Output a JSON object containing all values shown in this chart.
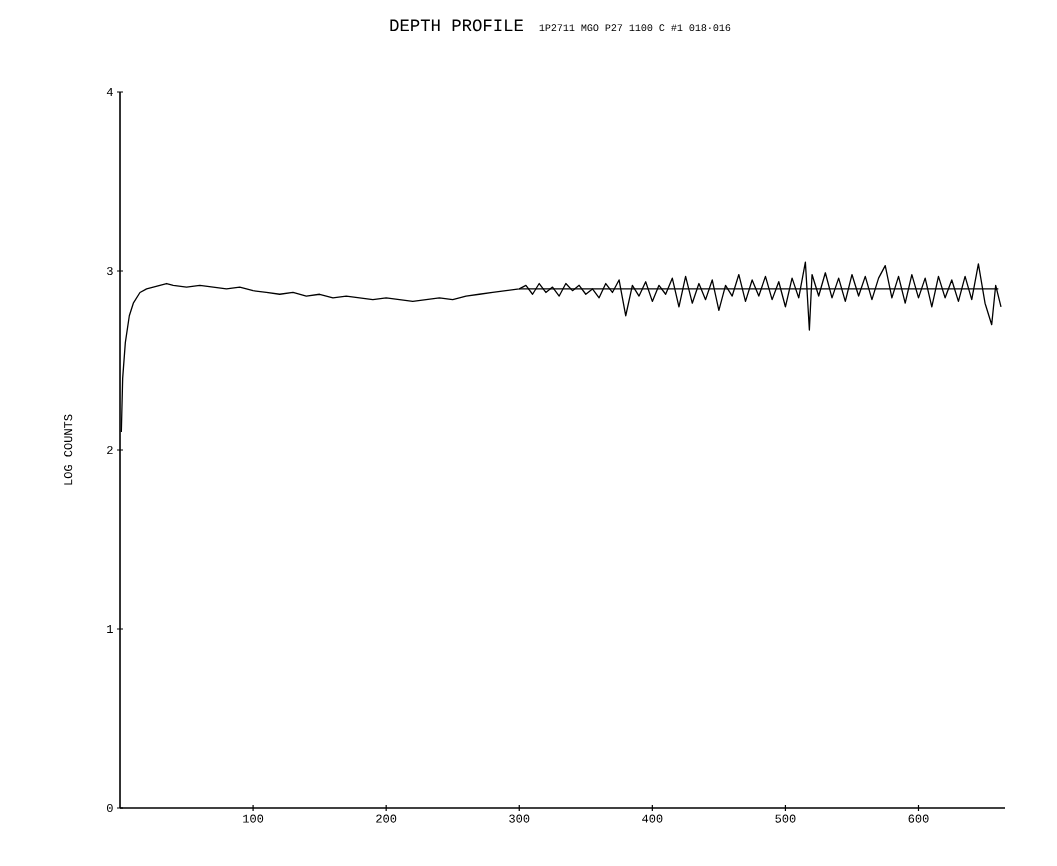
{
  "chart_data": {
    "type": "line",
    "title": "DEPTH PROFILE",
    "subtitle": "1P2711 MGO P27 1100 C #1 018·016",
    "ylabel": "LOG COUNTS",
    "xlim": [
      0,
      665
    ],
    "ylim": [
      0,
      4
    ],
    "xticks": [
      100,
      200,
      300,
      400,
      500,
      600
    ],
    "yticks": [
      0,
      1,
      2,
      3,
      4
    ],
    "grid": false,
    "marker": "none",
    "line_style": "solid",
    "series": [
      {
        "color": "#000000",
        "x": [
          1,
          2,
          4,
          7,
          10,
          15,
          20,
          25,
          30,
          35,
          40,
          50,
          60,
          70,
          80,
          90,
          100,
          110,
          120,
          130,
          140,
          150,
          160,
          170,
          180,
          190,
          200,
          210,
          220,
          230,
          240,
          250,
          260,
          270,
          280,
          290,
          300,
          305,
          310,
          315,
          320,
          325,
          330,
          335,
          340,
          345,
          350,
          355,
          360,
          365,
          370,
          375,
          380,
          385,
          390,
          395,
          400,
          405,
          410,
          415,
          420,
          425,
          430,
          435,
          440,
          445,
          450,
          455,
          460,
          465,
          470,
          475,
          480,
          485,
          490,
          495,
          500,
          505,
          510,
          515,
          518,
          520,
          525,
          530,
          535,
          540,
          545,
          550,
          555,
          560,
          565,
          570,
          575,
          580,
          585,
          590,
          595,
          600,
          605,
          610,
          615,
          620,
          625,
          630,
          635,
          640,
          645,
          650,
          655,
          658,
          662
        ],
        "values": [
          2.1,
          2.4,
          2.6,
          2.75,
          2.82,
          2.88,
          2.9,
          2.91,
          2.92,
          2.93,
          2.92,
          2.91,
          2.92,
          2.91,
          2.9,
          2.91,
          2.89,
          2.88,
          2.87,
          2.88,
          2.86,
          2.87,
          2.85,
          2.86,
          2.85,
          2.84,
          2.85,
          2.84,
          2.83,
          2.84,
          2.85,
          2.84,
          2.86,
          2.87,
          2.88,
          2.89,
          2.9,
          2.92,
          2.87,
          2.93,
          2.88,
          2.91,
          2.86,
          2.93,
          2.89,
          2.92,
          2.87,
          2.9,
          2.85,
          2.93,
          2.88,
          2.95,
          2.75,
          2.92,
          2.86,
          2.94,
          2.83,
          2.92,
          2.87,
          2.96,
          2.8,
          2.97,
          2.82,
          2.93,
          2.84,
          2.95,
          2.78,
          2.92,
          2.86,
          2.98,
          2.83,
          2.95,
          2.86,
          2.97,
          2.84,
          2.94,
          2.8,
          2.96,
          2.85,
          3.05,
          2.67,
          2.98,
          2.86,
          2.99,
          2.85,
          2.96,
          2.83,
          2.98,
          2.86,
          2.97,
          2.84,
          2.96,
          3.03,
          2.85,
          2.97,
          2.82,
          2.98,
          2.85,
          2.96,
          2.8,
          2.97,
          2.85,
          2.95,
          2.83,
          2.97,
          2.84,
          3.04,
          2.82,
          2.7,
          2.92,
          2.8
        ]
      },
      {
        "color": "#000000",
        "x": [
          300,
          660
        ],
        "values": [
          2.9,
          2.9
        ]
      }
    ]
  }
}
